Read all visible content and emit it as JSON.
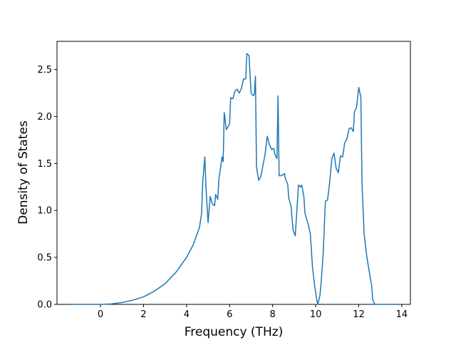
{
  "chart_data": {
    "type": "line",
    "xlabel": "Frequency (THz)",
    "ylabel": "Density of States",
    "x": [
      -1.3,
      0,
      0.5,
      1,
      1.5,
      2,
      2.5,
      3,
      3.5,
      4,
      4.3,
      4.6,
      4.7,
      4.75,
      4.85,
      4.9,
      5.0,
      5.1,
      5.2,
      5.3,
      5.35,
      5.45,
      5.5,
      5.65,
      5.7,
      5.75,
      5.85,
      6.0,
      6.05,
      6.15,
      6.25,
      6.35,
      6.45,
      6.55,
      6.65,
      6.75,
      6.8,
      6.9,
      7.0,
      7.1,
      7.15,
      7.2,
      7.25,
      7.35,
      7.45,
      7.55,
      7.65,
      7.75,
      7.85,
      7.95,
      8.05,
      8.1,
      8.2,
      8.25,
      8.3,
      8.4,
      8.55,
      8.6,
      8.7,
      8.75,
      8.85,
      8.95,
      9.05,
      9.2,
      9.3,
      9.35,
      9.45,
      9.5,
      9.65,
      9.75,
      9.85,
      9.95,
      10.05,
      10.1,
      10.2,
      10.25,
      10.35,
      10.45,
      10.55,
      10.65,
      10.75,
      10.85,
      10.95,
      11.05,
      11.15,
      11.25,
      11.35,
      11.45,
      11.55,
      11.65,
      11.75,
      11.8,
      11.9,
      12.0,
      12.1,
      12.15,
      12.25,
      12.35,
      12.45,
      12.6,
      12.65,
      12.75,
      13.7
    ],
    "values": [
      0,
      0,
      0.005,
      0.02,
      0.045,
      0.08,
      0.14,
      0.22,
      0.34,
      0.5,
      0.63,
      0.82,
      0.97,
      1.3,
      1.57,
      1.25,
      0.87,
      1.15,
      1.07,
      1.05,
      1.17,
      1.12,
      1.33,
      1.57,
      1.52,
      2.04,
      1.86,
      1.92,
      2.2,
      2.19,
      2.27,
      2.29,
      2.25,
      2.3,
      2.4,
      2.4,
      2.67,
      2.65,
      2.25,
      2.22,
      2.24,
      2.43,
      1.46,
      1.32,
      1.36,
      1.48,
      1.6,
      1.79,
      1.7,
      1.65,
      1.66,
      1.6,
      1.55,
      2.22,
      1.37,
      1.37,
      1.39,
      1.33,
      1.28,
      1.13,
      1.05,
      0.79,
      0.73,
      1.27,
      1.25,
      1.27,
      1.15,
      0.97,
      0.85,
      0.75,
      0.4,
      0.2,
      0.05,
      0,
      0.1,
      0.22,
      0.55,
      1.1,
      1.11,
      1.3,
      1.55,
      1.61,
      1.45,
      1.4,
      1.58,
      1.57,
      1.72,
      1.76,
      1.87,
      1.88,
      1.84,
      2.05,
      2.1,
      2.31,
      2.2,
      1.3,
      0.75,
      0.55,
      0.4,
      0.2,
      0.05,
      0,
      0
    ],
    "color": "#1f77b4",
    "xlim": [
      -2.02,
      14.4
    ],
    "ylim": [
      0,
      2.8
    ],
    "xticks": [
      0,
      2,
      4,
      6,
      8,
      10,
      12,
      14
    ],
    "yticks": [
      {
        "value": 0,
        "label": "0.0"
      },
      {
        "value": 0.5,
        "label": "0.5"
      },
      {
        "value": 1,
        "label": "1.0"
      },
      {
        "value": 1.5,
        "label": "1.5"
      },
      {
        "value": 2,
        "label": "2.0"
      },
      {
        "value": 2.5,
        "label": "2.5"
      }
    ]
  }
}
